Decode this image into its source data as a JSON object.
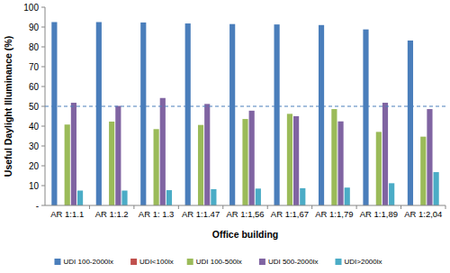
{
  "chart_data": {
    "type": "bar",
    "x_label": "Office building",
    "y_label": "Useful Daylight Illuminance (%)",
    "categories": [
      "AR 1:1.1",
      "AR 1:1.2",
      "AR 1: 1.3",
      "AR 1:1.47",
      "AR 1:1,56",
      "AR 1:1,67",
      "AR 1:1,79",
      "AR 1:1,89",
      "AR 1:2,04"
    ],
    "series": [
      {
        "name": "UDI 100-2000lx",
        "color": "#4a7ebb",
        "values": [
          92.5,
          92.5,
          92.3,
          91.8,
          91.5,
          91.3,
          91.0,
          88.8,
          83.2
        ]
      },
      {
        "name": "UDI<100lx",
        "color": "#c0504d",
        "values": [
          0,
          0,
          0,
          0,
          0,
          0,
          0,
          0,
          0
        ]
      },
      {
        "name": "UDI 100-500lx",
        "color": "#9bbb59",
        "values": [
          40.8,
          42.3,
          38.5,
          40.6,
          43.6,
          46.2,
          48.6,
          37.1,
          34.7
        ]
      },
      {
        "name": "UDI 500-2000lx",
        "color": "#8064a2",
        "values": [
          51.8,
          50.2,
          54.2,
          51.2,
          47.8,
          45.0,
          42.4,
          51.8,
          48.6
        ]
      },
      {
        "name": "UDI>2000lx",
        "color": "#4bacc6",
        "values": [
          7.5,
          7.5,
          7.7,
          8.2,
          8.5,
          8.7,
          9.0,
          11.2,
          16.8
        ]
      }
    ],
    "reference_line": 50,
    "ylim": [
      0,
      100
    ],
    "yticks": [
      {
        "value": 0,
        "label": "-"
      },
      10,
      20,
      30,
      40,
      50,
      60,
      70,
      80,
      90,
      100
    ],
    "grid": false,
    "legend": "bottom"
  }
}
